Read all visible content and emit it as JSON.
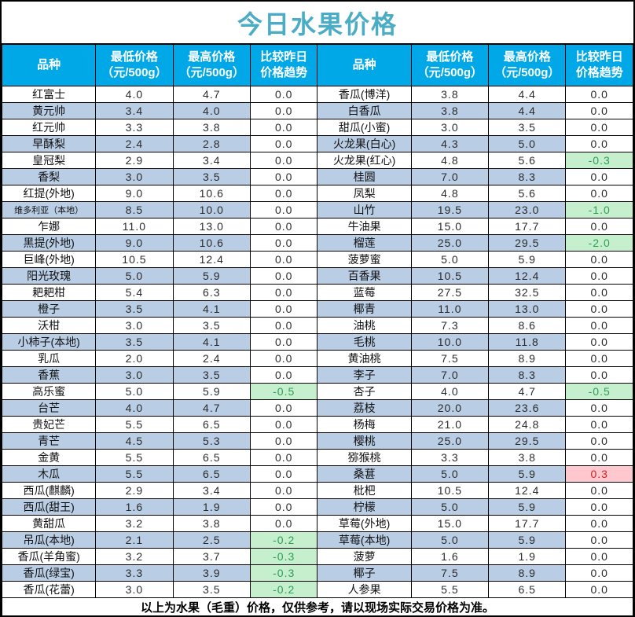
{
  "title": "今日水果价格",
  "footer": "以上为水果（毛重）价格，仅供参考，请以现场实际交易价格为准。",
  "columns": [
    {
      "line1": "品种",
      "line2": ""
    },
    {
      "line1": "最低价格",
      "line2": "（元/500g）"
    },
    {
      "line1": "最高价格",
      "line2": "（元/500g）"
    },
    {
      "line1": "比较昨日",
      "line2": "价格趋势"
    }
  ],
  "colors": {
    "header_bg": "#00A8E8",
    "title": "#4BACC6",
    "stripe": "#B9CDE5",
    "trend_down_bg": "#C6EFCE",
    "trend_down_text": "#2E9E54",
    "trend_up_bg": "#FFC7CE",
    "trend_up_text": "#CC2222"
  },
  "left_rows": [
    {
      "name": "红富士",
      "min": "4.0",
      "max": "4.7",
      "trend": "0.0"
    },
    {
      "name": "黄元帅",
      "min": "3.4",
      "max": "4.0",
      "trend": "0.0"
    },
    {
      "name": "红元帅",
      "min": "3.3",
      "max": "3.8",
      "trend": "0.0"
    },
    {
      "name": "早酥梨",
      "min": "2.4",
      "max": "2.8",
      "trend": "0.0"
    },
    {
      "name": "皇冠梨",
      "min": "2.9",
      "max": "3.4",
      "trend": "0.0"
    },
    {
      "name": "香梨",
      "min": "3.0",
      "max": "3.5",
      "trend": "0.0"
    },
    {
      "name": "红提(外地)",
      "min": "9.0",
      "max": "10.6",
      "trend": "0.0"
    },
    {
      "name": "维多利亚（本地）",
      "min": "8.5",
      "max": "10.0",
      "trend": "0.0"
    },
    {
      "name": "乍娜",
      "min": "11.0",
      "max": "13.0",
      "trend": "0.0"
    },
    {
      "name": "黑提(外地)",
      "min": "9.0",
      "max": "10.6",
      "trend": "0.0"
    },
    {
      "name": "巨峰(外地)",
      "min": "10.5",
      "max": "12.4",
      "trend": "0.0"
    },
    {
      "name": "阳光玫瑰",
      "min": "5.0",
      "max": "5.9",
      "trend": "0.0"
    },
    {
      "name": "耙耙柑",
      "min": "5.4",
      "max": "6.3",
      "trend": "0.0"
    },
    {
      "name": "橙子",
      "min": "3.5",
      "max": "4.1",
      "trend": "0.0"
    },
    {
      "name": "沃柑",
      "min": "3.0",
      "max": "3.5",
      "trend": "0.0"
    },
    {
      "name": "小柿子(本地)",
      "min": "3.5",
      "max": "4.1",
      "trend": "0.0"
    },
    {
      "name": "乳瓜",
      "min": "2.0",
      "max": "2.4",
      "trend": "0.0"
    },
    {
      "name": "香蕉",
      "min": "3.0",
      "max": "3.5",
      "trend": "0.0"
    },
    {
      "name": "高乐蜜",
      "min": "5.0",
      "max": "5.9",
      "trend": "-0.5"
    },
    {
      "name": "台芒",
      "min": "4.0",
      "max": "4.7",
      "trend": "0.0"
    },
    {
      "name": "贵妃芒",
      "min": "5.5",
      "max": "6.5",
      "trend": "0.0"
    },
    {
      "name": "青芒",
      "min": "4.5",
      "max": "5.3",
      "trend": "0.0"
    },
    {
      "name": "金黄",
      "min": "5.5",
      "max": "6.5",
      "trend": "0.0"
    },
    {
      "name": "木瓜",
      "min": "5.5",
      "max": "6.5",
      "trend": "0.0"
    },
    {
      "name": "西瓜(麒麟)",
      "min": "2.9",
      "max": "3.4",
      "trend": "0.0"
    },
    {
      "name": "西瓜(甜王)",
      "min": "1.6",
      "max": "1.9",
      "trend": "0.0"
    },
    {
      "name": "黄甜瓜",
      "min": "3.2",
      "max": "3.8",
      "trend": "0.0"
    },
    {
      "name": "吊瓜(本地)",
      "min": "2.1",
      "max": "2.5",
      "trend": "-0.2"
    },
    {
      "name": "香瓜(羊角蜜)",
      "min": "3.2",
      "max": "3.7",
      "trend": "-0.3"
    },
    {
      "name": "香瓜(绿宝)",
      "min": "3.3",
      "max": "3.9",
      "trend": "-0.3"
    },
    {
      "name": "香瓜(花蕾)",
      "min": "3.0",
      "max": "3.5",
      "trend": "-0.2"
    }
  ],
  "right_rows": [
    {
      "name": "香瓜(博洋)",
      "min": "3.8",
      "max": "4.4",
      "trend": "0.0"
    },
    {
      "name": "白香瓜",
      "min": "3.8",
      "max": "4.4",
      "trend": "0.0"
    },
    {
      "name": "甜瓜(小蜜)",
      "min": "3.0",
      "max": "3.5",
      "trend": "0.0"
    },
    {
      "name": "火龙果(白心)",
      "min": "4.3",
      "max": "5.0",
      "trend": "0.0"
    },
    {
      "name": "火龙果(红心)",
      "min": "4.8",
      "max": "5.6",
      "trend": "-0.3"
    },
    {
      "name": "桂圆",
      "min": "7.0",
      "max": "8.3",
      "trend": "0.0"
    },
    {
      "name": "凤梨",
      "min": "4.8",
      "max": "5.6",
      "trend": "0.0"
    },
    {
      "name": "山竹",
      "min": "19.5",
      "max": "23.0",
      "trend": "-1.0"
    },
    {
      "name": "牛油果",
      "min": "15.0",
      "max": "17.7",
      "trend": "0.0"
    },
    {
      "name": "榴莲",
      "min": "25.0",
      "max": "29.5",
      "trend": "-2.0"
    },
    {
      "name": "菠萝蜜",
      "min": "5.0",
      "max": "5.9",
      "trend": "0.0"
    },
    {
      "name": "百香果",
      "min": "10.5",
      "max": "12.4",
      "trend": "0.0"
    },
    {
      "name": "蓝莓",
      "min": "27.5",
      "max": "32.5",
      "trend": "0.0"
    },
    {
      "name": "椰青",
      "min": "11.0",
      "max": "13.0",
      "trend": "0.0"
    },
    {
      "name": "油桃",
      "min": "7.3",
      "max": "8.6",
      "trend": "0.0"
    },
    {
      "name": "毛桃",
      "min": "10.0",
      "max": "11.8",
      "trend": "0.0"
    },
    {
      "name": "黄油桃",
      "min": "7.5",
      "max": "8.9",
      "trend": "0.0"
    },
    {
      "name": "李子",
      "min": "7.0",
      "max": "8.3",
      "trend": "0.0"
    },
    {
      "name": "杏子",
      "min": "4.0",
      "max": "4.7",
      "trend": "-0.5"
    },
    {
      "name": "荔枝",
      "min": "20.0",
      "max": "23.6",
      "trend": "0.0"
    },
    {
      "name": "杨梅",
      "min": "21.0",
      "max": "24.8",
      "trend": "0.0"
    },
    {
      "name": "樱桃",
      "min": "25.0",
      "max": "29.5",
      "trend": "0.0"
    },
    {
      "name": "猕猴桃",
      "min": "3.3",
      "max": "3.8",
      "trend": "0.0"
    },
    {
      "name": "桑葚",
      "min": "5.0",
      "max": "5.9",
      "trend": "0.3"
    },
    {
      "name": "枇杷",
      "min": "10.5",
      "max": "12.4",
      "trend": "0.0"
    },
    {
      "name": "柠檬",
      "min": "5.0",
      "max": "5.9",
      "trend": "0.0"
    },
    {
      "name": "草莓(外地)",
      "min": "15.0",
      "max": "17.7",
      "trend": "0.0"
    },
    {
      "name": "草莓(本地)",
      "min": "5.0",
      "max": "5.9",
      "trend": "0.0"
    },
    {
      "name": "菠萝",
      "min": "1.6",
      "max": "1.9",
      "trend": "0.0"
    },
    {
      "name": "椰子",
      "min": "7.5",
      "max": "8.9",
      "trend": "0.0"
    },
    {
      "name": "人参果",
      "min": "5.5",
      "max": "6.5",
      "trend": "0.0"
    }
  ]
}
